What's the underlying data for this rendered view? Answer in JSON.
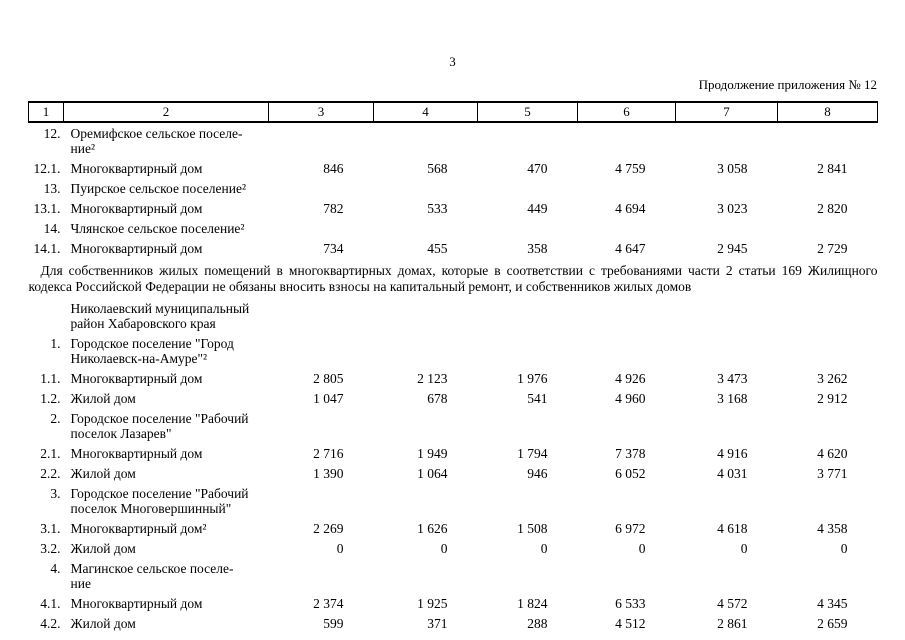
{
  "page": {
    "number": "3",
    "continuation": "Продолжение приложения № 12"
  },
  "table": {
    "header_cols": [
      "1",
      "2",
      "3",
      "4",
      "5",
      "6",
      "7",
      "8"
    ],
    "rows": [
      {
        "type": "section",
        "num": "12.",
        "name": "Оремифское сельское поселе-\nние²"
      },
      {
        "type": "data",
        "num": "12.1.",
        "name": "Многоквартирный дом",
        "values": [
          "846",
          "568",
          "470",
          "4 759",
          "3 058",
          "2 841"
        ]
      },
      {
        "type": "section",
        "num": "13.",
        "name": "Пуирское сельское поселение²"
      },
      {
        "type": "data",
        "num": "13.1.",
        "name": "Многоквартирный дом",
        "values": [
          "782",
          "533",
          "449",
          "4 694",
          "3 023",
          "2 820"
        ]
      },
      {
        "type": "section",
        "num": "14.",
        "name": "Члянское сельское поселение²"
      },
      {
        "type": "data",
        "num": "14.1.",
        "name": "Многоквартирный дом",
        "values": [
          "734",
          "455",
          "358",
          "4 647",
          "2 945",
          "2 729"
        ]
      },
      {
        "type": "note",
        "text": "Для собственников жилых помещений в многоквартирных домах, которые в соответствии с требованиями части 2 статьи 169 Жилищного кодекса Российской Федерации не обязаны вносить взносы на капитальный ремонт, и собственников жилых домов"
      },
      {
        "type": "section",
        "num": "",
        "name": "Николаевский муниципальный\nрайон Хабаровского края"
      },
      {
        "type": "section",
        "num": "1.",
        "name": "Городское поселение \"Город\nНиколаевск-на-Амуре\"²"
      },
      {
        "type": "data",
        "num": "1.1.",
        "name": "Многоквартирный дом",
        "values": [
          "2 805",
          "2 123",
          "1 976",
          "4 926",
          "3 473",
          "3 262"
        ]
      },
      {
        "type": "data",
        "num": "1.2.",
        "name": "Жилой дом",
        "values": [
          "1 047",
          "678",
          "541",
          "4 960",
          "3 168",
          "2 912"
        ]
      },
      {
        "type": "section",
        "num": "2.",
        "name": "Городское поселение \"Рабочий\nпоселок Лазарев\""
      },
      {
        "type": "data",
        "num": "2.1.",
        "name": "Многоквартирный дом",
        "values": [
          "2 716",
          "1 949",
          "1 794",
          "7 378",
          "4 916",
          "4 620"
        ]
      },
      {
        "type": "data",
        "num": "2.2.",
        "name": "Жилой дом",
        "values": [
          "1 390",
          "1 064",
          "946",
          "6 052",
          "4 031",
          "3 771"
        ]
      },
      {
        "type": "section",
        "num": "3.",
        "name": "Городское поселение \"Рабочий\nпоселок Многовершинный\""
      },
      {
        "type": "data",
        "num": "3.1.",
        "name": "Многоквартирный дом²",
        "values": [
          "2 269",
          "1 626",
          "1 508",
          "6 972",
          "4 618",
          "4 358"
        ]
      },
      {
        "type": "data",
        "num": "3.2.",
        "name": "Жилой дом",
        "values": [
          "0",
          "0",
          "0",
          "0",
          "0",
          "0"
        ]
      },
      {
        "type": "section",
        "num": "4.",
        "name": "Магинское сельское поселе-\nние"
      },
      {
        "type": "data",
        "num": "4.1.",
        "name": "Многоквартирный дом",
        "values": [
          "2 374",
          "1 925",
          "1 824",
          "6 533",
          "4 572",
          "4 345"
        ]
      },
      {
        "type": "data",
        "num": "4.2.",
        "name": "Жилой дом",
        "values": [
          "599",
          "371",
          "288",
          "4 512",
          "2 861",
          "2 659"
        ]
      }
    ]
  }
}
